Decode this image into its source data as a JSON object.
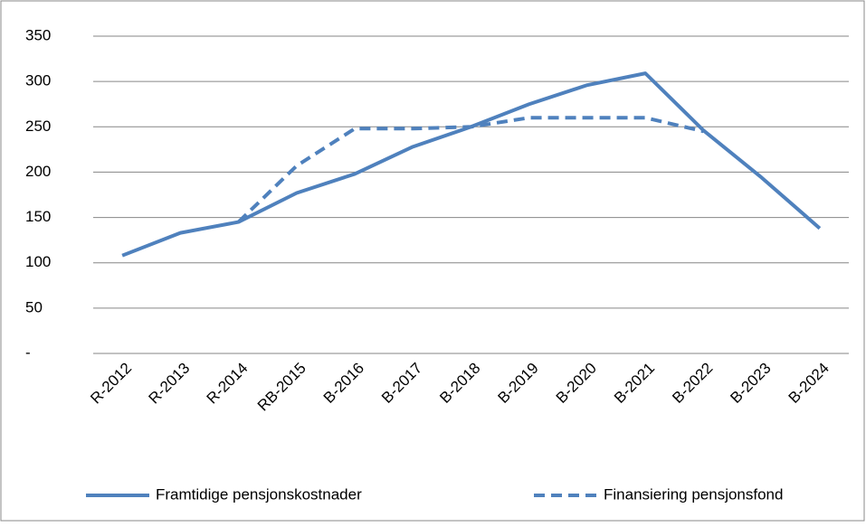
{
  "chart_data": {
    "type": "line",
    "categories": [
      "R-2012",
      "R-2013",
      "R-2014",
      "RB-2015",
      "B-2016",
      "B-2017",
      "B-2018",
      "B-2019",
      "B-2020",
      "B-2021",
      "B-2022",
      "B-2023",
      "B-2024"
    ],
    "series": [
      {
        "name": "Framtidige pensjonskostnader",
        "color": "#4f81bd",
        "dash": false,
        "values": [
          108,
          133,
          145,
          177,
          198,
          228,
          250,
          275,
          296,
          309,
          246,
          194,
          138
        ]
      },
      {
        "name": "Finansiering pensjonsfond",
        "color": "#4f81bd",
        "dash": true,
        "values": [
          null,
          null,
          145,
          207,
          248,
          248,
          250,
          260,
          260,
          260,
          245,
          null,
          null
        ]
      }
    ],
    "ylim": [
      0,
      350
    ],
    "yticks": [
      {
        "value": 0,
        "label": "-"
      },
      50,
      100,
      150,
      200,
      250,
      300,
      350
    ],
    "grid": true,
    "legend": "bottom"
  }
}
